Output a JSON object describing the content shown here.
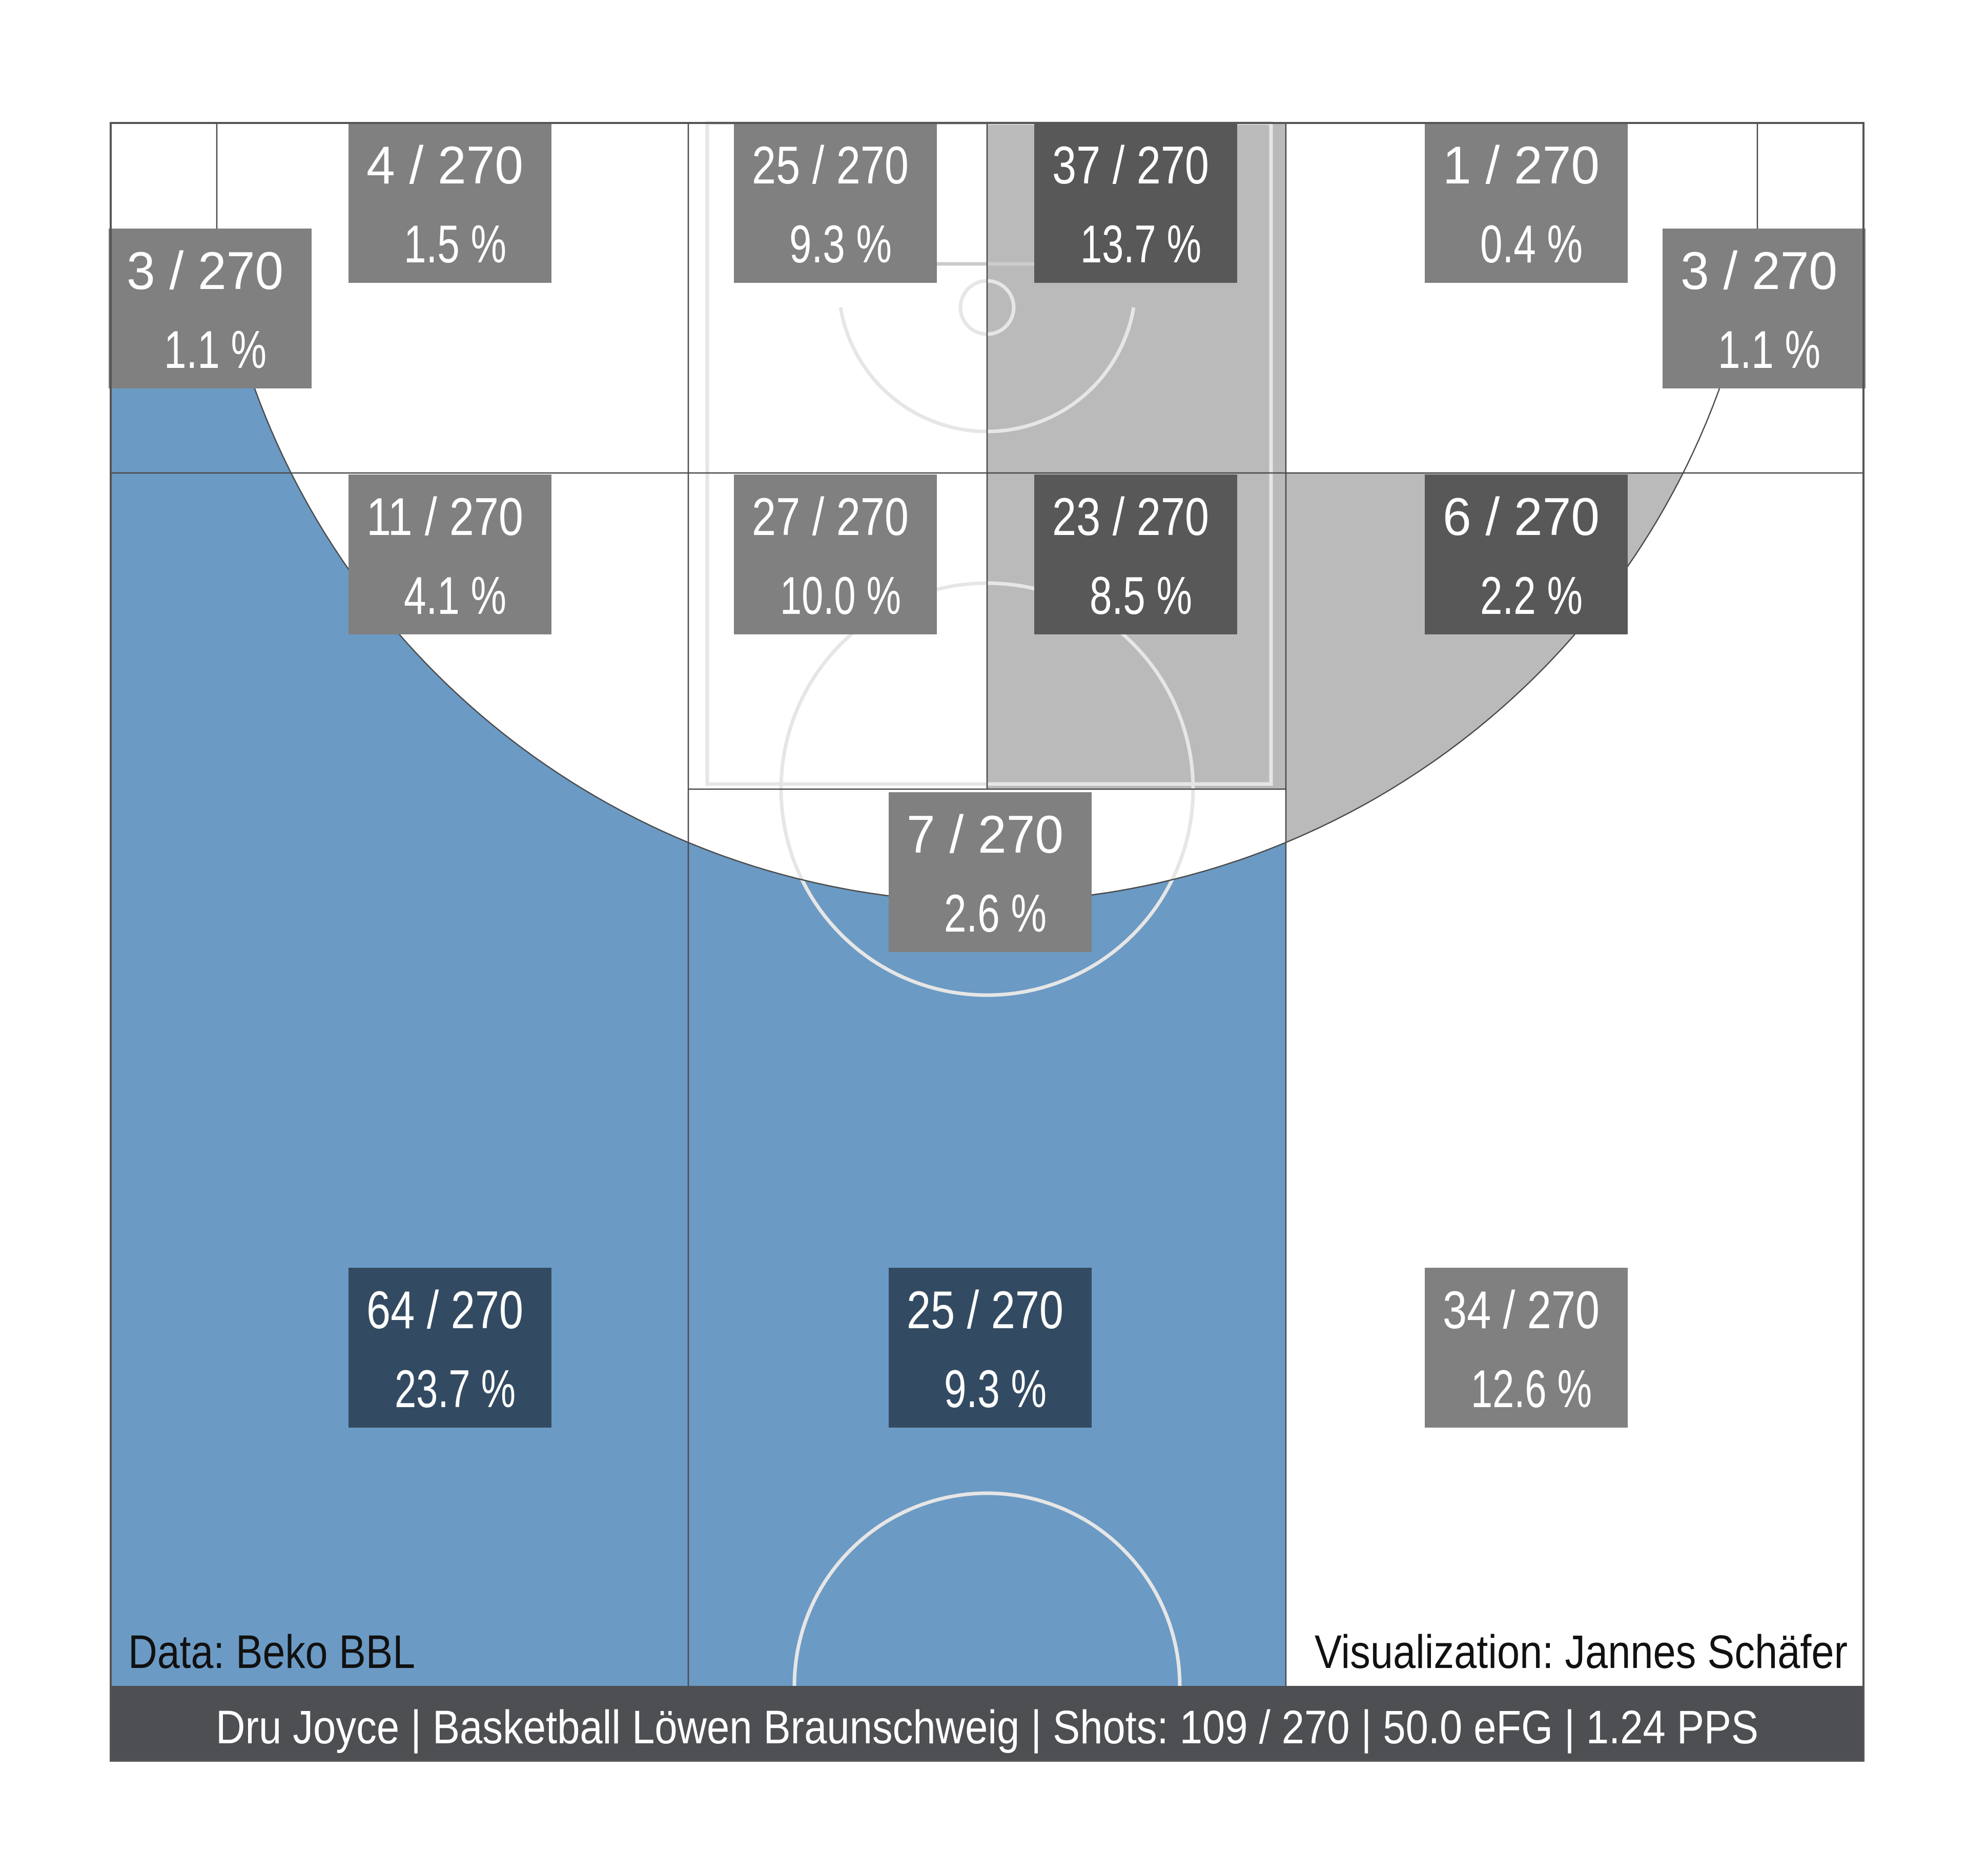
{
  "chart_data": {
    "type": "heatmap",
    "zones": [
      {
        "id": "left-corner-3",
        "attempts": "3 / 270",
        "share": "1.1 %",
        "attempts_made": 3,
        "total": 270,
        "percent": 1.1,
        "fill": "#ffffff",
        "box": "#808080"
      },
      {
        "id": "left-upper-midrange",
        "attempts": "4 / 270",
        "share": "1.5 %",
        "attempts_made": 4,
        "total": 270,
        "percent": 1.5,
        "fill": "#ffffff",
        "box": "#808080"
      },
      {
        "id": "paint-left-baseline",
        "attempts": "25 / 270",
        "share": "9.3 %",
        "attempts_made": 25,
        "total": 270,
        "percent": 9.3,
        "fill": "#ffffff",
        "box": "#808080"
      },
      {
        "id": "paint-right-baseline",
        "attempts": "37 / 270",
        "share": "13.7 %",
        "attempts_made": 37,
        "total": 270,
        "percent": 13.7,
        "fill": "#bababa",
        "box": "#585858"
      },
      {
        "id": "right-upper-midrange",
        "attempts": "1 / 270",
        "share": "0.4 %",
        "attempts_made": 1,
        "total": 270,
        "percent": 0.4,
        "fill": "#ffffff",
        "box": "#808080"
      },
      {
        "id": "right-corner-3",
        "attempts": "3 / 270",
        "share": "1.1 %",
        "attempts_made": 3,
        "total": 270,
        "percent": 1.1,
        "fill": "#ffffff",
        "box": "#808080"
      },
      {
        "id": "left-lower-midrange",
        "attempts": "11 / 270",
        "share": "4.1 %",
        "attempts_made": 11,
        "total": 270,
        "percent": 4.1,
        "fill": "#ffffff",
        "box": "#808080"
      },
      {
        "id": "paint-left-upper",
        "attempts": "27 / 270",
        "share": "10.0 %",
        "attempts_made": 27,
        "total": 270,
        "percent": 10.0,
        "fill": "#ffffff",
        "box": "#808080"
      },
      {
        "id": "paint-right-upper",
        "attempts": "23 / 270",
        "share": "8.5 %",
        "attempts_made": 23,
        "total": 270,
        "percent": 8.5,
        "fill": "#bababa",
        "box": "#585858"
      },
      {
        "id": "right-lower-midrange",
        "attempts": "6 / 270",
        "share": "2.2 %",
        "attempts_made": 6,
        "total": 270,
        "percent": 2.2,
        "fill": "#bababa",
        "box": "#585858"
      },
      {
        "id": "top-key-midrange",
        "attempts": "7 / 270",
        "share": "2.6 %",
        "attempts_made": 7,
        "total": 270,
        "percent": 2.6,
        "fill": "#ffffff",
        "box": "#808080"
      },
      {
        "id": "left-wing-3",
        "attempts": "64 / 270",
        "share": "23.7 %",
        "attempts_made": 64,
        "total": 270,
        "percent": 23.7,
        "fill": "#6b9ac4",
        "box": "#334b62"
      },
      {
        "id": "top-3",
        "attempts": "25 / 270",
        "share": "9.3 %",
        "attempts_made": 25,
        "total": 270,
        "percent": 9.3,
        "fill": "#6b9ac4",
        "box": "#334b62"
      },
      {
        "id": "right-wing-3",
        "attempts": "34 / 270",
        "share": "12.6 %",
        "attempts_made": 34,
        "total": 270,
        "percent": 12.6,
        "fill": "#ffffff",
        "box": "#808080"
      }
    ],
    "colors": {
      "above_average": "#6b9ac4",
      "below_average": "#bababa",
      "average": "#ffffff",
      "footer_bar": "#4e4f52",
      "court_lines": "#e6e6e6",
      "zone_borders": "#4a4a4a"
    }
  },
  "credits": {
    "data_source": "Data: Beko BBL",
    "visualization": "Visualization: Jannes Schäfer"
  },
  "footer": {
    "summary": "Dru Joyce | Basketball Löwen Braunschweig | Shots: 109 / 270 | 50.0 eFG | 1.24 PPS"
  }
}
